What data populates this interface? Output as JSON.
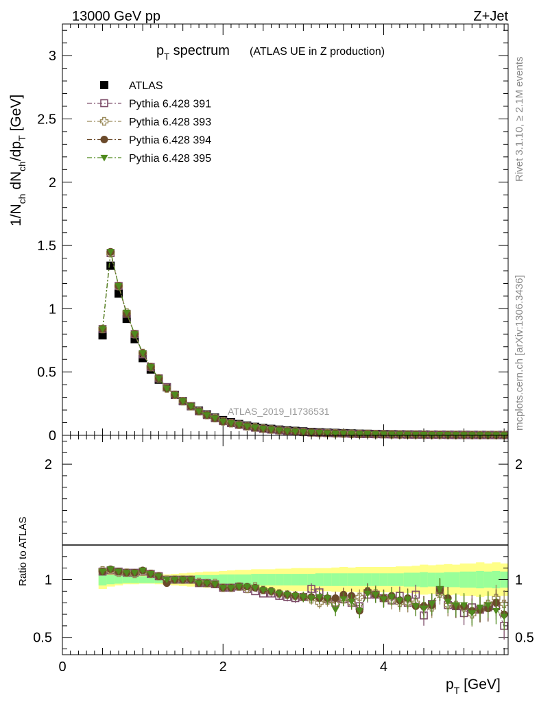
{
  "header": {
    "energy_label": "13000 GeV pp",
    "process_label": "Z+Jet"
  },
  "side_labels": {
    "rivet": "Rivet 3.1.10, ≥ 2.1M events",
    "mcplots": "mcplots.cern.ch [arXiv:1306.3436]"
  },
  "chart_data": [
    {
      "type": "scatter",
      "panel": "main",
      "title": "p_T spectrum",
      "title_parts": {
        "main": "p",
        "sub": "T",
        "rest": " spectrum",
        "suffix": "(ATLAS UE in Z production)"
      },
      "ylabel": "1/N_ch dN_ch/dp_T [GeV]",
      "xlim": [
        0,
        5.55
      ],
      "ylim": [
        0,
        3.25
      ],
      "yticks": [
        "0",
        "0.5",
        "1",
        "1.5",
        "2",
        "2.5",
        "3"
      ],
      "watermark": "ATLAS_2019_I1736531",
      "legend_placement": "top-left",
      "x": [
        0.5,
        0.6,
        0.7,
        0.8,
        0.9,
        1.0,
        1.1,
        1.2,
        1.3,
        1.4,
        1.5,
        1.6,
        1.7,
        1.8,
        1.9,
        2.0,
        2.1,
        2.2,
        2.3,
        2.4,
        2.5,
        2.6,
        2.7,
        2.8,
        2.9,
        3.0,
        3.1,
        3.2,
        3.3,
        3.4,
        3.5,
        3.6,
        3.7,
        3.8,
        3.9,
        4.0,
        4.1,
        4.2,
        4.3,
        4.4,
        4.5,
        4.6,
        4.7,
        4.8,
        4.9,
        5.0,
        5.1,
        5.2,
        5.3,
        5.4,
        5.5
      ],
      "series": [
        {
          "name": "ATLAS",
          "marker": "square-filled",
          "color": "#000000",
          "values": [
            0.79,
            1.34,
            1.12,
            0.92,
            0.76,
            0.61,
            0.52,
            0.44,
            0.38,
            0.32,
            0.27,
            0.23,
            0.195,
            0.165,
            0.14,
            0.12,
            0.103,
            0.089,
            0.077,
            0.067,
            0.058,
            0.051,
            0.045,
            0.039,
            0.035,
            0.031,
            0.027,
            0.024,
            0.021,
            0.019,
            0.017,
            0.015,
            0.013,
            0.012,
            0.011,
            0.01,
            0.009,
            0.008,
            0.007,
            0.0065,
            0.006,
            0.0055,
            0.005,
            0.0045,
            0.004,
            0.0037,
            0.0034,
            0.0031,
            0.0028,
            0.0025,
            0.0023
          ]
        },
        {
          "name": "Pythia 6.428 391",
          "marker": "square-open",
          "color": "#7b4a67",
          "values": [
            0.84,
            1.44,
            1.18,
            0.96,
            0.8,
            0.64,
            0.54,
            0.45,
            0.38,
            0.32,
            0.27,
            0.23,
            0.19,
            0.16,
            0.135,
            0.112,
            0.096,
            0.083,
            0.071,
            0.06,
            0.051,
            0.045,
            0.039,
            0.033,
            0.029,
            0.026,
            0.022,
            0.02,
            0.017,
            0.015,
            0.014,
            0.012,
            0.01,
            0.01,
            0.0088,
            0.0083,
            0.0072,
            0.0068,
            0.0057,
            0.0056,
            0.0042,
            0.0043,
            0.0045,
            0.0035,
            0.0031,
            0.0026,
            0.0026,
            0.0023,
            0.0021,
            0.0019,
            0.0014
          ]
        },
        {
          "name": "Pythia 6.428 393",
          "marker": "cross-open",
          "color": "#9a8a5a",
          "values": [
            0.84,
            1.44,
            1.18,
            0.97,
            0.8,
            0.65,
            0.54,
            0.45,
            0.37,
            0.32,
            0.27,
            0.23,
            0.19,
            0.16,
            0.136,
            0.111,
            0.096,
            0.083,
            0.071,
            0.063,
            0.053,
            0.046,
            0.04,
            0.034,
            0.03,
            0.026,
            0.022,
            0.019,
            0.017,
            0.015,
            0.014,
            0.012,
            0.011,
            0.011,
            0.0095,
            0.0083,
            0.0074,
            0.0064,
            0.0056,
            0.0052,
            0.0046,
            0.0042,
            0.0044,
            0.0035,
            0.0031,
            0.0028,
            0.0024,
            0.0023,
            0.0022,
            0.0021,
            0.0018
          ]
        },
        {
          "name": "Pythia 6.428 394",
          "marker": "circle-filled",
          "color": "#6b4a2b",
          "values": [
            0.84,
            1.45,
            1.18,
            0.96,
            0.8,
            0.65,
            0.54,
            0.45,
            0.37,
            0.32,
            0.27,
            0.23,
            0.19,
            0.16,
            0.135,
            0.11,
            0.096,
            0.083,
            0.072,
            0.062,
            0.053,
            0.046,
            0.04,
            0.034,
            0.03,
            0.026,
            0.023,
            0.02,
            0.017,
            0.016,
            0.015,
            0.011,
            0.0095,
            0.011,
            0.0094,
            0.0083,
            0.0078,
            0.0065,
            0.0059,
            0.0051,
            0.0047,
            0.0043,
            0.0046,
            0.0038,
            0.0031,
            0.0029,
            0.0025,
            0.0023,
            0.0021,
            0.002,
            0.0016
          ]
        },
        {
          "name": "Pythia 6.428 395",
          "marker": "triangle-down-filled",
          "color": "#4f8a1e",
          "values": [
            0.84,
            1.45,
            1.18,
            0.97,
            0.8,
            0.65,
            0.54,
            0.45,
            0.37,
            0.32,
            0.27,
            0.23,
            0.19,
            0.16,
            0.135,
            0.11,
            0.096,
            0.084,
            0.072,
            0.062,
            0.053,
            0.046,
            0.04,
            0.034,
            0.03,
            0.026,
            0.023,
            0.02,
            0.017,
            0.014,
            0.014,
            0.012,
            0.0095,
            0.011,
            0.0094,
            0.0083,
            0.0076,
            0.0066,
            0.0058,
            0.0052,
            0.0045,
            0.0043,
            0.0046,
            0.0036,
            0.0031,
            0.0027,
            0.0025,
            0.0023,
            0.0021,
            0.002,
            0.0015
          ]
        }
      ]
    },
    {
      "type": "scatter",
      "panel": "ratio",
      "ylabel": "Ratio to ATLAS",
      "xlabel": "p_T [GeV]",
      "xlabel_parts": {
        "main": "p",
        "sub": "T",
        "rest": " [GeV]"
      },
      "xlim": [
        0,
        5.55
      ],
      "ylim": [
        0.35,
        2.25
      ],
      "xticks": [
        "0",
        "2",
        "4"
      ],
      "yticks": [
        "0.5",
        "1",
        "2"
      ],
      "reference_line": 1,
      "band_colors": {
        "inner": "#99ff99",
        "outer": "#ffff88"
      },
      "x": [
        0.5,
        0.6,
        0.7,
        0.8,
        0.9,
        1.0,
        1.1,
        1.2,
        1.3,
        1.4,
        1.5,
        1.6,
        1.7,
        1.8,
        1.9,
        2.0,
        2.1,
        2.2,
        2.3,
        2.4,
        2.5,
        2.6,
        2.7,
        2.8,
        2.9,
        3.0,
        3.1,
        3.2,
        3.3,
        3.4,
        3.5,
        3.6,
        3.7,
        3.8,
        3.9,
        4.0,
        4.1,
        4.2,
        4.3,
        4.4,
        4.5,
        4.6,
        4.7,
        4.8,
        4.9,
        5.0,
        5.1,
        5.2,
        5.3,
        5.4,
        5.5
      ],
      "band_inner": [
        0.05,
        0.04,
        0.035,
        0.03,
        0.03,
        0.03,
        0.03,
        0.03,
        0.03,
        0.035,
        0.035,
        0.035,
        0.04,
        0.04,
        0.04,
        0.045,
        0.045,
        0.045,
        0.045,
        0.05,
        0.05,
        0.05,
        0.05,
        0.05,
        0.05,
        0.05,
        0.05,
        0.055,
        0.055,
        0.055,
        0.055,
        0.055,
        0.055,
        0.055,
        0.055,
        0.055,
        0.055,
        0.055,
        0.06,
        0.06,
        0.065,
        0.06,
        0.06,
        0.065,
        0.065,
        0.07,
        0.07,
        0.075,
        0.07,
        0.075,
        0.07
      ],
      "band_outer": [
        0.08,
        0.06,
        0.05,
        0.04,
        0.04,
        0.035,
        0.035,
        0.04,
        0.045,
        0.05,
        0.055,
        0.06,
        0.065,
        0.07,
        0.07,
        0.075,
        0.08,
        0.085,
        0.085,
        0.09,
        0.09,
        0.09,
        0.095,
        0.095,
        0.1,
        0.1,
        0.1,
        0.1,
        0.1,
        0.105,
        0.11,
        0.105,
        0.11,
        0.11,
        0.11,
        0.11,
        0.11,
        0.115,
        0.115,
        0.12,
        0.13,
        0.125,
        0.13,
        0.135,
        0.13,
        0.14,
        0.14,
        0.15,
        0.14,
        0.15,
        0.14
      ],
      "series": [
        {
          "name": "Pythia 6.428 391",
          "marker": "square-open",
          "color": "#7b4a67",
          "values": [
            1.07,
            1.08,
            1.07,
            1.06,
            1.06,
            1.07,
            1.05,
            1.03,
            1.0,
            1.0,
            1.0,
            1.0,
            0.97,
            0.97,
            0.96,
            0.93,
            0.93,
            0.94,
            0.92,
            0.9,
            0.88,
            0.88,
            0.86,
            0.85,
            0.84,
            0.85,
            0.92,
            0.89,
            0.83,
            0.8,
            0.83,
            0.8,
            0.77,
            0.87,
            0.87,
            0.84,
            0.82,
            0.86,
            0.8,
            0.87,
            0.69,
            0.79,
            0.91,
            0.78,
            0.77,
            0.71,
            0.76,
            0.74,
            0.76,
            0.77,
            0.6
          ]
        },
        {
          "name": "Pythia 6.428 393",
          "marker": "cross-open",
          "color": "#9a8a5a",
          "values": [
            1.08,
            1.08,
            1.06,
            1.06,
            1.05,
            1.07,
            1.05,
            1.03,
            1.0,
            1.0,
            1.0,
            1.0,
            0.98,
            0.97,
            0.97,
            0.93,
            0.93,
            0.94,
            0.92,
            0.94,
            0.91,
            0.9,
            0.88,
            0.87,
            0.86,
            0.85,
            0.83,
            0.8,
            0.82,
            0.79,
            0.83,
            0.8,
            0.85,
            0.9,
            0.88,
            0.84,
            0.82,
            0.8,
            0.8,
            0.8,
            0.77,
            0.76,
            0.88,
            0.78,
            0.78,
            0.76,
            0.7,
            0.74,
            0.79,
            0.84,
            0.79
          ]
        },
        {
          "name": "Pythia 6.428 394",
          "marker": "circle-filled",
          "color": "#6b4a2b",
          "values": [
            1.07,
            1.09,
            1.07,
            1.06,
            1.06,
            1.08,
            1.05,
            1.03,
            0.97,
            1.0,
            1.0,
            1.0,
            0.97,
            0.97,
            0.96,
            0.93,
            0.93,
            0.94,
            0.94,
            0.93,
            0.91,
            0.9,
            0.88,
            0.87,
            0.86,
            0.85,
            0.85,
            0.84,
            0.84,
            0.84,
            0.87,
            0.86,
            0.73,
            0.9,
            0.87,
            0.84,
            0.86,
            0.82,
            0.84,
            0.77,
            0.77,
            0.78,
            0.91,
            0.84,
            0.77,
            0.77,
            0.73,
            0.74,
            0.75,
            0.8,
            0.7
          ]
        },
        {
          "name": "Pythia 6.428 395",
          "marker": "triangle-down-filled",
          "color": "#4f8a1e",
          "values": [
            1.07,
            1.09,
            1.07,
            1.06,
            1.06,
            1.08,
            1.05,
            1.03,
            1.0,
            1.0,
            1.0,
            1.0,
            0.97,
            0.97,
            0.96,
            0.93,
            0.93,
            0.94,
            0.94,
            0.93,
            0.91,
            0.9,
            0.88,
            0.87,
            0.86,
            0.85,
            0.84,
            0.85,
            0.84,
            0.74,
            0.83,
            0.81,
            0.73,
            0.88,
            0.87,
            0.83,
            0.85,
            0.82,
            0.83,
            0.77,
            0.75,
            0.79,
            0.92,
            0.81,
            0.78,
            0.78,
            0.71,
            0.76,
            0.78,
            0.73,
            0.68
          ]
        }
      ]
    }
  ]
}
